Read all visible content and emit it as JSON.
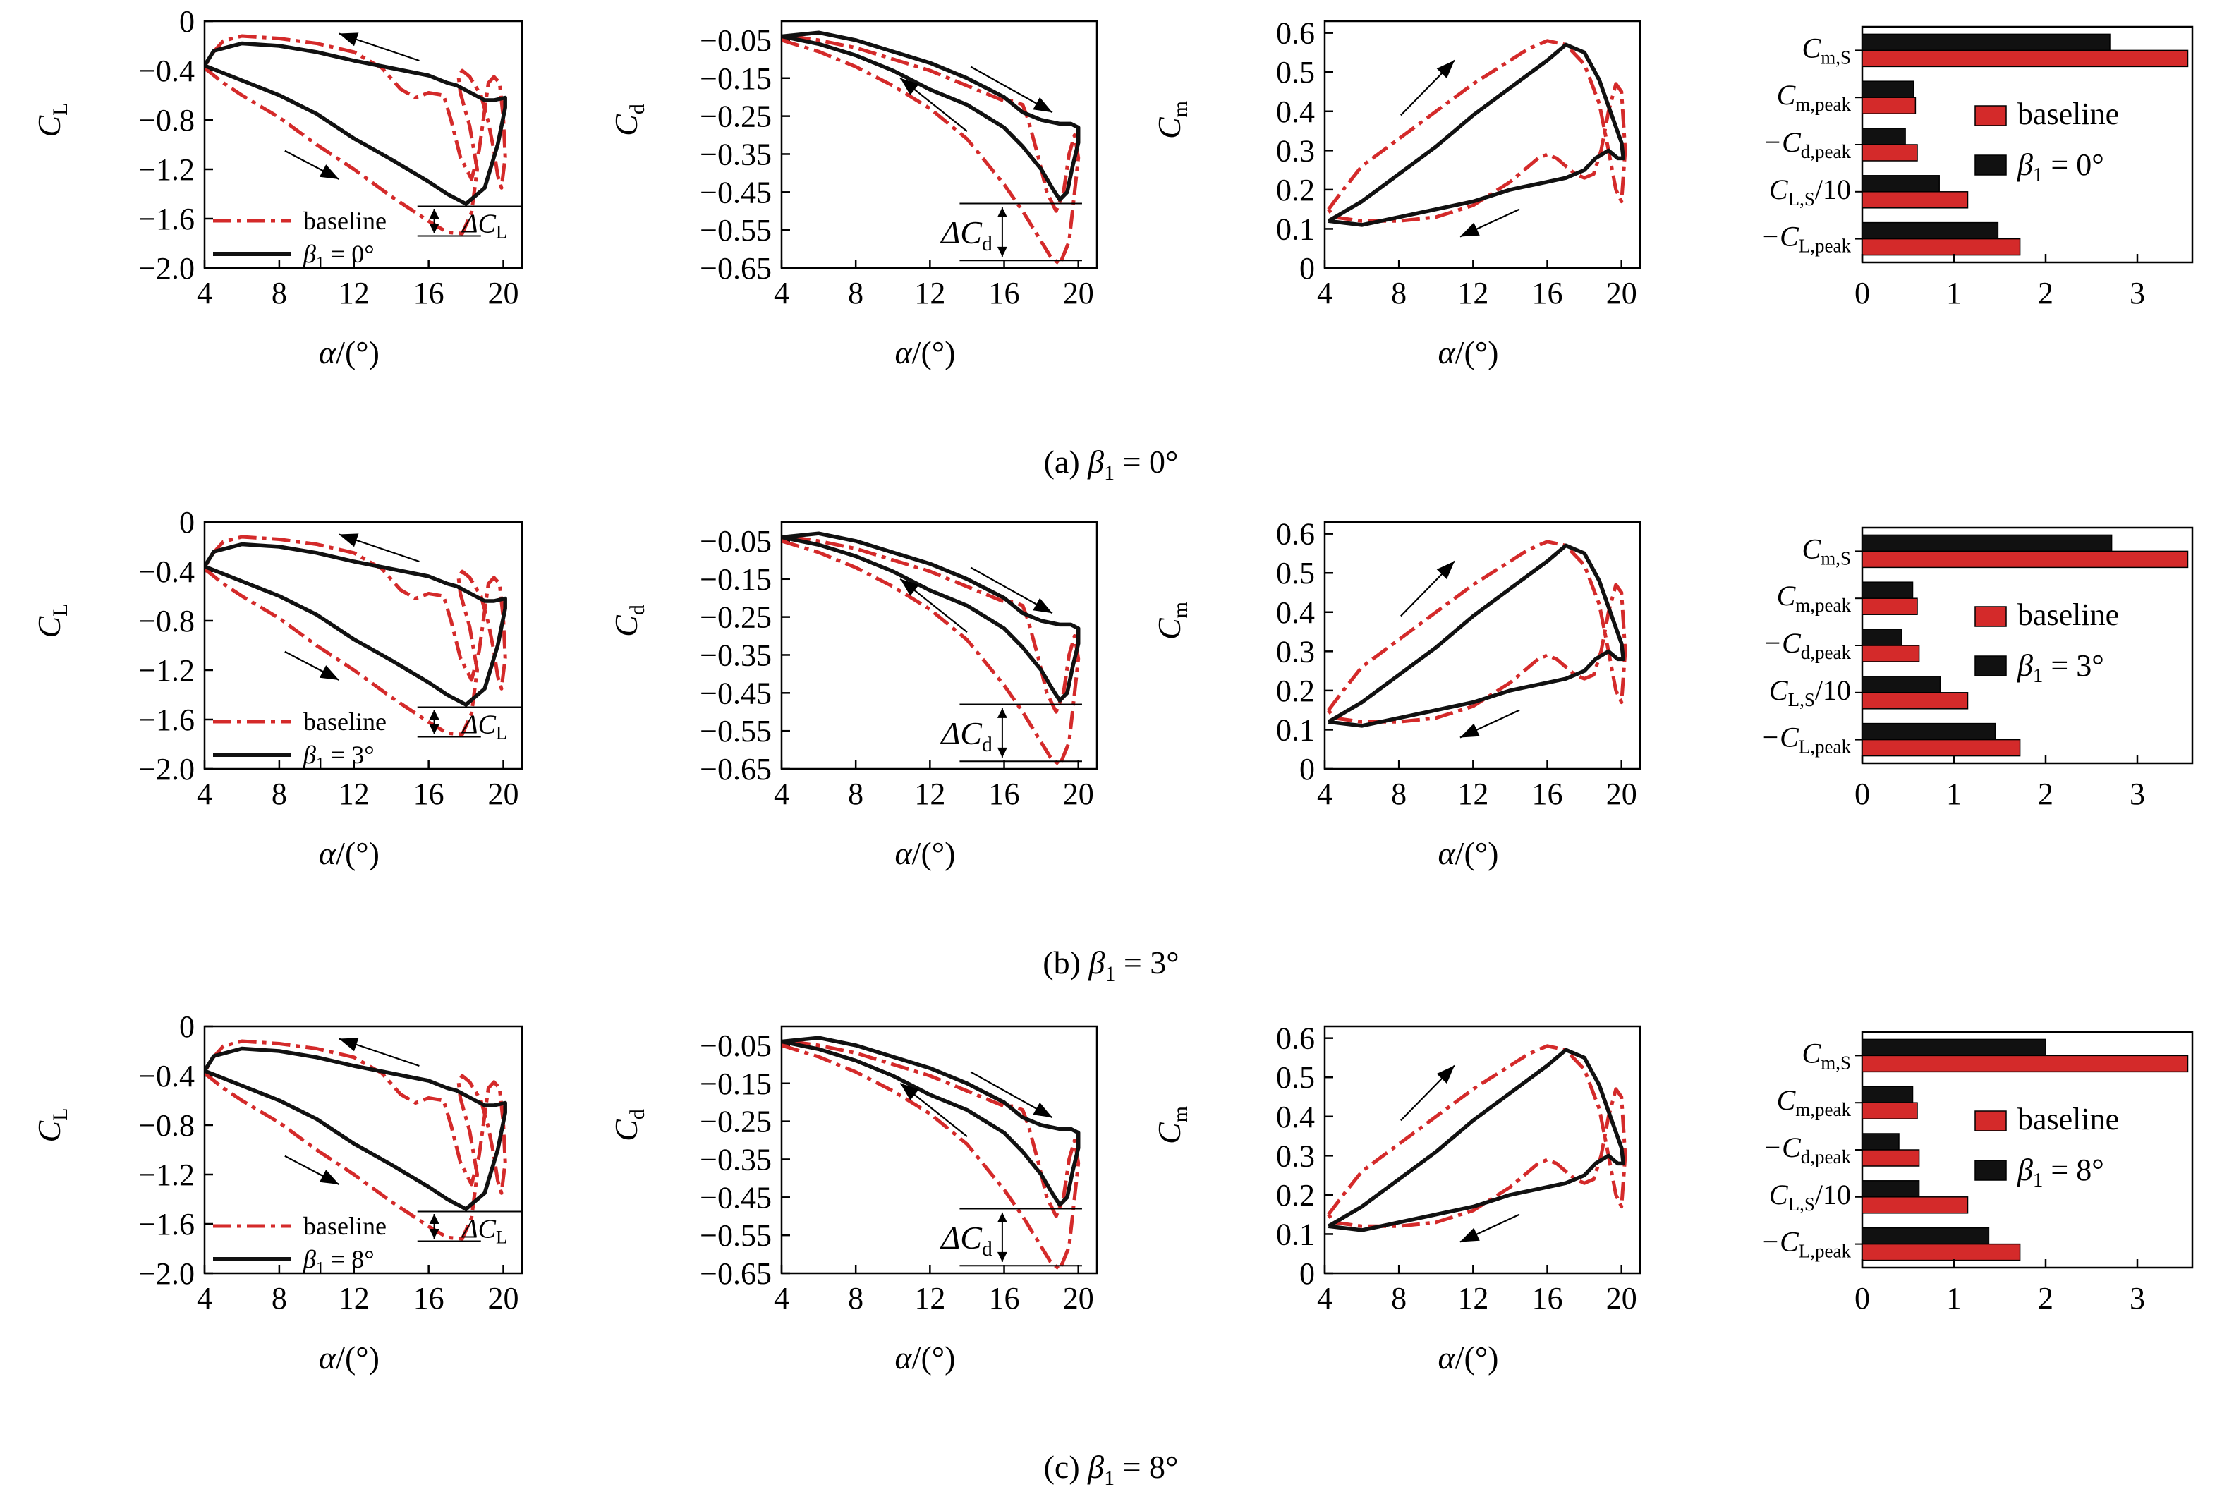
{
  "colors": {
    "baseline": "#d42a2a",
    "controlled": "#111111",
    "axis": "#000000"
  },
  "figure": {
    "rows": [
      {
        "caption": {
          "prefix": "(a) ",
          "symbol": "β",
          "sub": "1",
          "rest": " = 0°"
        },
        "legend_beta": {
          "symbol": "β",
          "sub": "1",
          "rest": " = 0°"
        },
        "bar": {
          "baseline": [
            3.55,
            0.58,
            0.6,
            1.15,
            1.72
          ],
          "controlled": [
            2.7,
            0.56,
            0.47,
            0.84,
            1.48
          ]
        }
      },
      {
        "caption": {
          "prefix": "(b) ",
          "symbol": "β",
          "sub": "1",
          "rest": " = 3°"
        },
        "legend_beta": {
          "symbol": "β",
          "sub": "1",
          "rest": " = 3°"
        },
        "bar": {
          "baseline": [
            3.55,
            0.6,
            0.62,
            1.15,
            1.72
          ],
          "controlled": [
            2.72,
            0.55,
            0.43,
            0.85,
            1.45
          ]
        }
      },
      {
        "caption": {
          "prefix": "(c) ",
          "symbol": "β",
          "sub": "1",
          "rest": " = 8°"
        },
        "legend_beta": {
          "symbol": "β",
          "sub": "1",
          "rest": " = 8°"
        },
        "bar": {
          "baseline": [
            3.55,
            0.6,
            0.62,
            1.15,
            1.72
          ],
          "controlled": [
            2.0,
            0.55,
            0.4,
            0.62,
            1.38
          ]
        }
      }
    ],
    "legend_baseline": "baseline",
    "bar_legend_baseline": "baseline",
    "delta_cl": {
      "symbol": "ΔC",
      "sub": "L"
    },
    "delta_cd": {
      "symbol": "ΔC",
      "sub": "d"
    }
  },
  "chart_data": [
    {
      "type": "line",
      "id": "cl",
      "xlabel": {
        "symbol": "α",
        "rest": "/(°)"
      },
      "ylabel": {
        "main": "C",
        "sub": "L"
      },
      "xlim": [
        4,
        21
      ],
      "ylim": [
        -2.0,
        0
      ],
      "xticks": [
        "4",
        "8",
        "12",
        "16",
        "20"
      ],
      "yticks": [
        "0",
        "−0.4",
        "−0.8",
        "−1.2",
        "−1.6",
        "−2.0"
      ],
      "series": [
        {
          "key": "baseline",
          "x": [
            4,
            5,
            6,
            8,
            10,
            12,
            14,
            15,
            16,
            17,
            17.8,
            18.3,
            18.6,
            18.2,
            17.7,
            17.6,
            17.8,
            18.2,
            18.8,
            19.2,
            19.5,
            19.7,
            19.9,
            20.1,
            20,
            19.8,
            19.5,
            19.2,
            19,
            18.7,
            18.3,
            17.7,
            17.2,
            16.8,
            16,
            15.3,
            14.5,
            13.5,
            12,
            10,
            8,
            6,
            5,
            4.3,
            4
          ],
          "y": [
            -0.38,
            -0.5,
            -0.6,
            -0.78,
            -1.0,
            -1.2,
            -1.42,
            -1.52,
            -1.62,
            -1.71,
            -1.72,
            -1.55,
            -1.2,
            -0.85,
            -0.58,
            -0.45,
            -0.4,
            -0.45,
            -0.6,
            -0.82,
            -1.05,
            -1.25,
            -1.35,
            -1.1,
            -0.78,
            -0.5,
            -0.45,
            -0.5,
            -0.72,
            -1.05,
            -1.28,
            -1.1,
            -0.8,
            -0.6,
            -0.58,
            -0.62,
            -0.55,
            -0.38,
            -0.25,
            -0.18,
            -0.14,
            -0.12,
            -0.16,
            -0.28,
            -0.38
          ]
        },
        {
          "key": "controlled",
          "x": [
            4,
            6,
            8,
            10,
            12,
            14,
            16,
            17,
            18,
            19,
            19.7,
            20.1,
            20.1,
            19.5,
            19,
            18.5,
            18,
            17.5,
            17,
            16,
            14,
            12,
            10,
            8,
            6,
            4.5,
            4
          ],
          "y": [
            -0.36,
            -0.48,
            -0.6,
            -0.75,
            -0.95,
            -1.12,
            -1.3,
            -1.4,
            -1.48,
            -1.35,
            -1.0,
            -0.7,
            -0.62,
            -0.64,
            -0.64,
            -0.6,
            -0.56,
            -0.52,
            -0.5,
            -0.44,
            -0.38,
            -0.32,
            -0.25,
            -0.2,
            -0.18,
            -0.24,
            -0.36
          ]
        }
      ]
    },
    {
      "type": "line",
      "id": "cd",
      "xlabel": {
        "symbol": "α",
        "rest": "/(°)"
      },
      "ylabel": {
        "main": "C",
        "sub": "d"
      },
      "xlim": [
        4,
        21
      ],
      "ylim": [
        -0.65,
        0
      ],
      "xticks": [
        "4",
        "8",
        "12",
        "16",
        "20"
      ],
      "yticks": [
        "−0.05",
        "−0.15",
        "−0.25",
        "−0.35",
        "−0.45",
        "−0.55",
        "−0.65"
      ],
      "series": [
        {
          "key": "baseline",
          "x": [
            4,
            6,
            8,
            10,
            12,
            14,
            16,
            17,
            18,
            18.5,
            19,
            19.5,
            19.8,
            20,
            19.8,
            19.5,
            19.2,
            18.8,
            18.3,
            17.8,
            17.3,
            17,
            16.5,
            16,
            15.5,
            14,
            12,
            10,
            8,
            6,
            4.5,
            4
          ],
          "y": [
            -0.05,
            -0.08,
            -0.12,
            -0.17,
            -0.23,
            -0.31,
            -0.43,
            -0.5,
            -0.58,
            -0.62,
            -0.64,
            -0.58,
            -0.45,
            -0.36,
            -0.3,
            -0.35,
            -0.45,
            -0.5,
            -0.45,
            -0.35,
            -0.26,
            -0.22,
            -0.21,
            -0.21,
            -0.2,
            -0.17,
            -0.13,
            -0.1,
            -0.07,
            -0.05,
            -0.04,
            -0.05
          ]
        },
        {
          "key": "controlled",
          "x": [
            4,
            6,
            8,
            10,
            12,
            14,
            16,
            17,
            18,
            18.6,
            19,
            19.4,
            19.7,
            20,
            20,
            19.6,
            19,
            18,
            17,
            16,
            14,
            12,
            10,
            8,
            6,
            4
          ],
          "y": [
            -0.04,
            -0.06,
            -0.09,
            -0.13,
            -0.18,
            -0.22,
            -0.28,
            -0.33,
            -0.39,
            -0.44,
            -0.47,
            -0.45,
            -0.38,
            -0.32,
            -0.28,
            -0.27,
            -0.27,
            -0.26,
            -0.24,
            -0.2,
            -0.15,
            -0.11,
            -0.08,
            -0.05,
            -0.03,
            -0.04
          ]
        }
      ]
    },
    {
      "type": "line",
      "id": "cm",
      "xlabel": {
        "symbol": "α",
        "rest": "/(°)"
      },
      "ylabel": {
        "main": "C",
        "sub": "m"
      },
      "xlim": [
        4,
        21
      ],
      "ylim": [
        0,
        0.63
      ],
      "xticks": [
        "4",
        "8",
        "12",
        "16",
        "20"
      ],
      "yticks": [
        "0",
        "0.1",
        "0.2",
        "0.3",
        "0.4",
        "0.5",
        "0.6"
      ],
      "series": [
        {
          "key": "baseline",
          "x": [
            4.2,
            5,
            6,
            8,
            10,
            12,
            14,
            15,
            16,
            17,
            18,
            18.8,
            19.3,
            19.7,
            20,
            20.2,
            20,
            19.7,
            19.3,
            18.9,
            18.5,
            18,
            17.5,
            17,
            16.5,
            16,
            15.5,
            14,
            12,
            10,
            8,
            6,
            4.5,
            4.2
          ],
          "y": [
            0.15,
            0.2,
            0.26,
            0.33,
            0.4,
            0.47,
            0.53,
            0.56,
            0.58,
            0.57,
            0.52,
            0.42,
            0.3,
            0.2,
            0.17,
            0.3,
            0.45,
            0.47,
            0.4,
            0.3,
            0.24,
            0.23,
            0.24,
            0.26,
            0.28,
            0.29,
            0.28,
            0.22,
            0.16,
            0.13,
            0.12,
            0.12,
            0.13,
            0.15
          ]
        },
        {
          "key": "controlled",
          "x": [
            4.2,
            6,
            8,
            10,
            12,
            14,
            16,
            17,
            18,
            18.8,
            19.4,
            20,
            20.1,
            19.8,
            19.3,
            18.6,
            18,
            17,
            16,
            14,
            12,
            10,
            8,
            6,
            4.2
          ],
          "y": [
            0.12,
            0.17,
            0.24,
            0.31,
            0.39,
            0.46,
            0.53,
            0.57,
            0.55,
            0.48,
            0.4,
            0.32,
            0.28,
            0.28,
            0.3,
            0.28,
            0.25,
            0.23,
            0.22,
            0.2,
            0.17,
            0.15,
            0.13,
            0.11,
            0.12
          ]
        }
      ]
    },
    {
      "type": "bar",
      "id": "metrics",
      "orientation": "horizontal",
      "categories": [
        {
          "main": "C",
          "sub": "m,S"
        },
        {
          "main": "C",
          "sub": "m,peak"
        },
        {
          "main": "−C",
          "sub": "d,peak"
        },
        {
          "main": "C",
          "sub": "L,S",
          "rest": "/10"
        },
        {
          "main": "−C",
          "sub": "L,peak"
        }
      ],
      "xlim": [
        0,
        3.6
      ],
      "xticks": [
        "0",
        "1",
        "2",
        "3"
      ]
    }
  ]
}
